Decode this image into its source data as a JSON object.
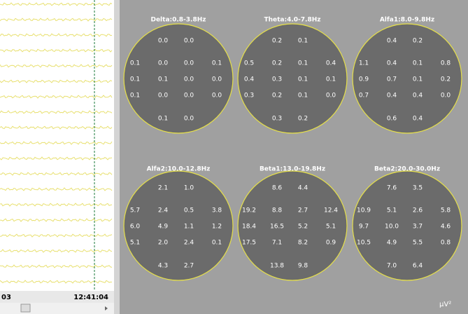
{
  "left_panel": {
    "start_time": "03",
    "end_time": "12:41:04"
  },
  "maps": [
    {
      "title": "Delta:0.8-3.8Hz",
      "rows": [
        [
          "0.0",
          "0.0"
        ],
        [
          "0.1",
          "0.0",
          "0.0",
          "0.1"
        ],
        [
          "0.1",
          "0.1",
          "0.0",
          "0.0"
        ],
        [
          "0.1",
          "0.0",
          "0.0",
          "0.0"
        ],
        [
          "0.1",
          "0.0"
        ]
      ]
    },
    {
      "title": "Theta:4.0-7.8Hz",
      "rows": [
        [
          "0.2",
          "0.1"
        ],
        [
          "0.5",
          "0.2",
          "0.1",
          "0.4"
        ],
        [
          "0.4",
          "0.3",
          "0.1",
          "0.1"
        ],
        [
          "0.3",
          "0.2",
          "0.1",
          "0.0"
        ],
        [
          "0.3",
          "0.2"
        ]
      ]
    },
    {
      "title": "Alfa1:8.0-9.8Hz",
      "rows": [
        [
          "0.4",
          "0.2"
        ],
        [
          "1.1",
          "0.4",
          "0.1",
          "0.8"
        ],
        [
          "0.9",
          "0.7",
          "0.1",
          "0.2"
        ],
        [
          "0.7",
          "0.4",
          "0.4",
          "0.0"
        ],
        [
          "0.6",
          "0.4"
        ]
      ]
    },
    {
      "title": "Alfa2:10.0-12.8Hz",
      "rows": [
        [
          "2.1",
          "1.0"
        ],
        [
          "5.7",
          "2.4",
          "0.5",
          "3.8"
        ],
        [
          "6.0",
          "4.9",
          "1.1",
          "1.2"
        ],
        [
          "5.1",
          "2.0",
          "2.4",
          "0.1"
        ],
        [
          "4.3",
          "2.7"
        ]
      ]
    },
    {
      "title": "Beta1:13.0-19.8Hz",
      "rows": [
        [
          "8.6",
          "4.4"
        ],
        [
          "19.2",
          "8.8",
          "2.7",
          "12.4"
        ],
        [
          "18.4",
          "16.5",
          "5.2",
          "5.1"
        ],
        [
          "17.5",
          "7.1",
          "8.2",
          "0.9"
        ],
        [
          "13.8",
          "9.8"
        ]
      ]
    },
    {
      "title": "Beta2:20.0-30.0Hz",
      "rows": [
        [
          "7.6",
          "3.5"
        ],
        [
          "10.9",
          "5.1",
          "2.6",
          "5.8"
        ],
        [
          "9.7",
          "10.0",
          "3.7",
          "4.6"
        ],
        [
          "10.5",
          "4.9",
          "5.5",
          "0.8"
        ],
        [
          "7.0",
          "6.4"
        ]
      ]
    }
  ],
  "unit": "μV²"
}
